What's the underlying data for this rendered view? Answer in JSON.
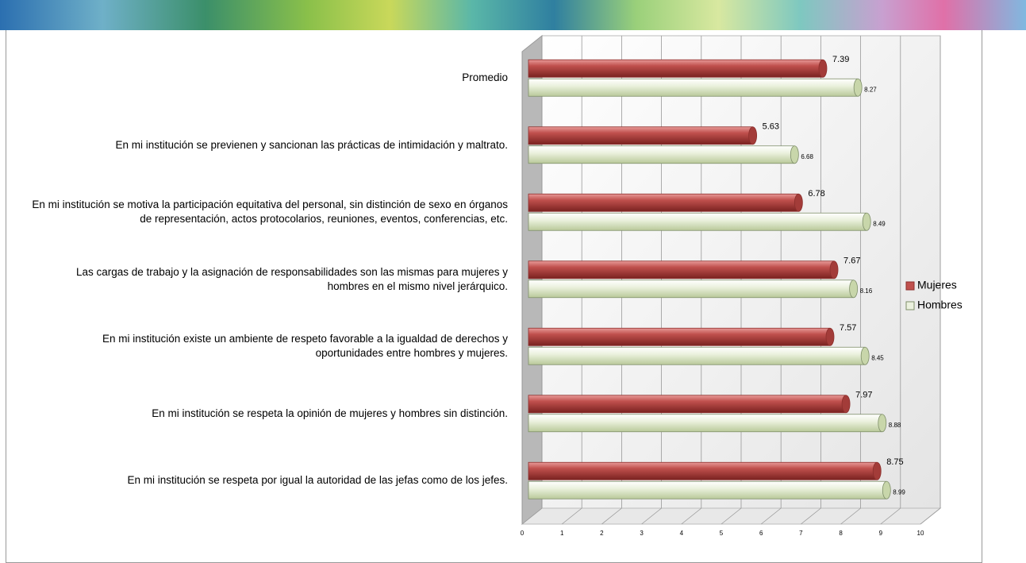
{
  "chart_data": {
    "type": "bar",
    "orientation": "horizontal",
    "categories": [
      "Promedio",
      "En mi institución se previenen y sancionan las prácticas de intimidación y maltrato.",
      "En mi institución se motiva la participación equitativa del personal, sin distinción de sexo en órganos de representación, actos protocolarios, reuniones, eventos, conferencias, etc.",
      "Las cargas de trabajo y la asignación de responsabilidades son las mismas para mujeres y hombres en el mismo nivel jerárquico.",
      "En mi institución existe un ambiente de respeto favorable a la igualdad de derechos y oportunidades entre hombres y mujeres.",
      "En mi institución se respeta la opinión de mujeres y hombres sin distinción.",
      "En mi institución se respeta por igual la autoridad de las jefas como de los jefes."
    ],
    "series": [
      {
        "name": "Mujeres",
        "color": "#c0504d",
        "values": [
          7.39,
          5.63,
          6.78,
          7.67,
          7.57,
          7.97,
          8.75
        ]
      },
      {
        "name": "Hombres",
        "color": "#ebf1de",
        "values": [
          8.27,
          6.68,
          8.49,
          8.16,
          8.45,
          8.88,
          8.99
        ]
      }
    ],
    "xlim": [
      0,
      10
    ],
    "xticks": [
      0,
      1,
      2,
      3,
      4,
      5,
      6,
      7,
      8,
      9,
      10
    ],
    "grid": true,
    "legend": "right"
  }
}
